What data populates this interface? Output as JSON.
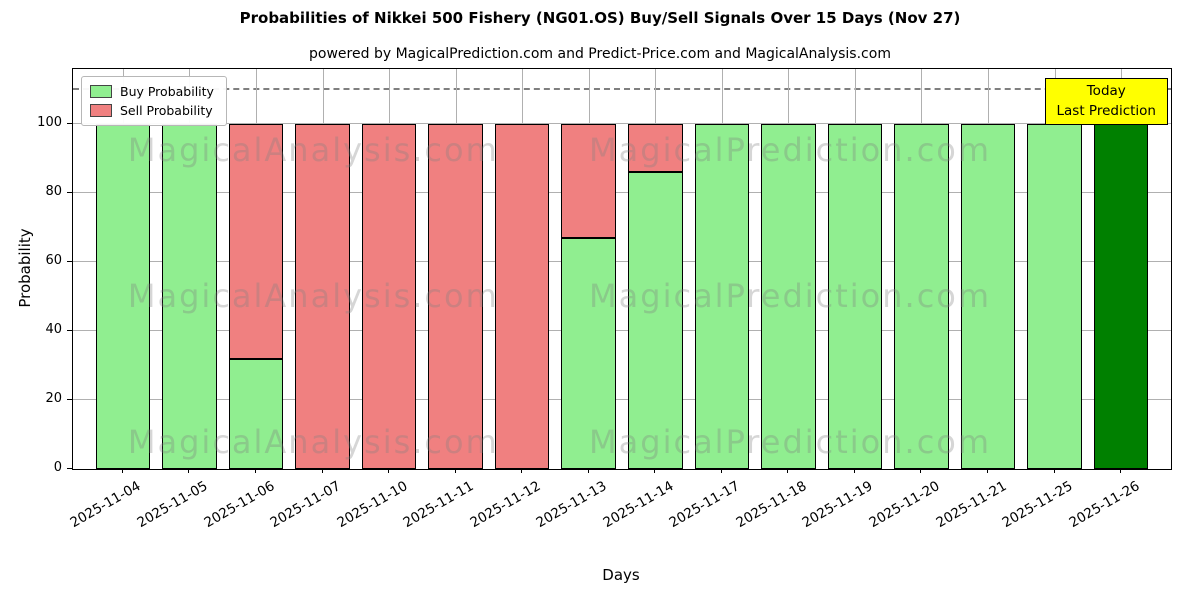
{
  "chart_data": {
    "type": "bar",
    "stacked": true,
    "title": "Probabilities of Nikkei 500 Fishery (NG01.OS) Buy/Sell Signals Over 15 Days (Nov 27)",
    "subtitle": "powered by MagicalPrediction.com and Predict-Price.com and MagicalAnalysis.com",
    "xlabel": "Days",
    "ylabel": "Probability",
    "ylim": [
      0,
      116
    ],
    "yticks": [
      0,
      20,
      40,
      60,
      80,
      100
    ],
    "dashed_line_y": 110,
    "grid": true,
    "legend_position": "upper left",
    "categories": [
      "2025-11-04",
      "2025-11-05",
      "2025-11-06",
      "2025-11-07",
      "2025-11-10",
      "2025-11-11",
      "2025-11-12",
      "2025-11-13",
      "2025-11-14",
      "2025-11-17",
      "2025-11-18",
      "2025-11-19",
      "2025-11-20",
      "2025-11-21",
      "2025-11-25",
      "2025-11-26"
    ],
    "series": [
      {
        "name": "Buy Probability",
        "color": "#90ee90",
        "values": [
          100,
          100,
          32,
          0,
          0,
          0,
          0,
          67,
          86,
          100,
          100,
          100,
          100,
          100,
          100,
          100
        ]
      },
      {
        "name": "Sell Probability",
        "color": "#f08080",
        "values": [
          0,
          0,
          68,
          100,
          100,
          100,
          100,
          33,
          14,
          0,
          0,
          0,
          0,
          0,
          0,
          0
        ]
      }
    ],
    "today_bar": {
      "index": 15,
      "color": "#008000"
    }
  },
  "annotation": {
    "line1": "Today",
    "line2": "Last Prediction",
    "bg": "#ffff00"
  },
  "watermarks": [
    "MagicalAnalysis.com",
    "MagicalPrediction.com"
  ]
}
